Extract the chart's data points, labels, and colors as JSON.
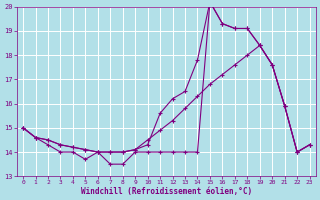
{
  "xlabel": "Windchill (Refroidissement éolien,°C)",
  "xlim": [
    -0.5,
    23.5
  ],
  "ylim": [
    13,
    20
  ],
  "yticks": [
    13,
    14,
    15,
    16,
    17,
    18,
    19,
    20
  ],
  "xticks": [
    0,
    1,
    2,
    3,
    4,
    5,
    6,
    7,
    8,
    9,
    10,
    11,
    12,
    13,
    14,
    15,
    16,
    17,
    18,
    19,
    20,
    21,
    22,
    23
  ],
  "bg_color": "#b2e0e8",
  "grid_color": "#c8d8dc",
  "line_color": "#800080",
  "line1_x": [
    0,
    1,
    2,
    3,
    4,
    5,
    6,
    7,
    8,
    9,
    10,
    11,
    12,
    13,
    14,
    15,
    16,
    17,
    18,
    19,
    20,
    21,
    22,
    23
  ],
  "line1_y": [
    15.0,
    14.6,
    14.3,
    14.0,
    14.0,
    13.7,
    14.0,
    13.5,
    13.5,
    14.0,
    14.0,
    14.0,
    14.0,
    14.0,
    14.0,
    20.2,
    19.3,
    19.1,
    19.1,
    18.4,
    17.6,
    15.9,
    14.0,
    14.3
  ],
  "line2_x": [
    0,
    1,
    2,
    3,
    4,
    5,
    6,
    7,
    8,
    9,
    10,
    11,
    12,
    13,
    14,
    15,
    16,
    17,
    18,
    19,
    20,
    21,
    22,
    23
  ],
  "line2_y": [
    15.0,
    14.6,
    14.5,
    14.3,
    14.2,
    14.1,
    14.0,
    14.0,
    14.0,
    14.1,
    14.5,
    14.9,
    15.3,
    15.8,
    16.3,
    16.8,
    17.2,
    17.6,
    18.0,
    18.4,
    17.6,
    15.9,
    14.0,
    14.3
  ],
  "line3_x": [
    0,
    1,
    2,
    3,
    4,
    5,
    6,
    7,
    8,
    9,
    10,
    11,
    12,
    13,
    14,
    15,
    16,
    17,
    18,
    19,
    20,
    21,
    22,
    23
  ],
  "line3_y": [
    15.0,
    14.6,
    14.5,
    14.3,
    14.2,
    14.1,
    14.0,
    14.0,
    14.0,
    14.1,
    14.3,
    15.6,
    16.2,
    16.5,
    17.8,
    20.2,
    19.3,
    19.1,
    19.1,
    18.4,
    17.6,
    15.9,
    14.0,
    14.3
  ]
}
